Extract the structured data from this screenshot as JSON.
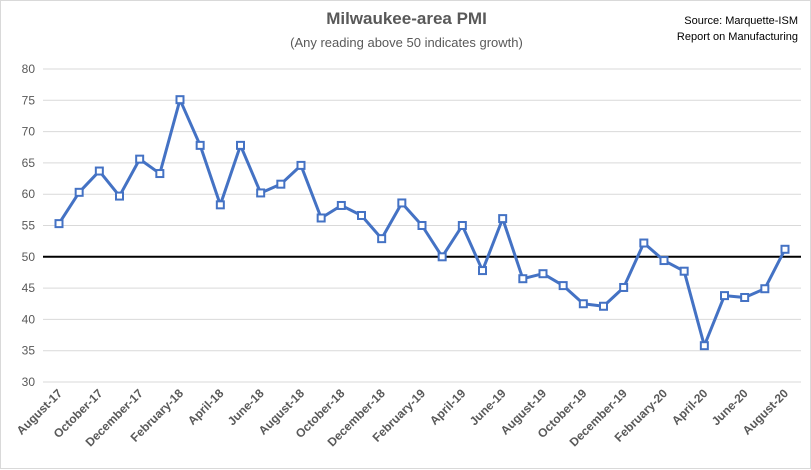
{
  "chart_data": {
    "type": "line",
    "title": "Milwaukee-area PMI",
    "subtitle": "(Any reading above 50 indicates growth)",
    "source_lines": [
      "Source: Marquette-ISM",
      "Report on Manufacturing"
    ],
    "xlabel": "",
    "ylabel": "",
    "ylim": [
      30,
      80
    ],
    "yticks": [
      30,
      35,
      40,
      45,
      50,
      55,
      60,
      65,
      70,
      75,
      80
    ],
    "grid": true,
    "reference_line": 50,
    "x": [
      "August-17",
      "September-17",
      "October-17",
      "November-17",
      "December-17",
      "January-18",
      "February-18",
      "March-18",
      "April-18",
      "May-18",
      "June-18",
      "July-18",
      "August-18",
      "September-18",
      "October-18",
      "November-18",
      "December-18",
      "January-19",
      "February-19",
      "March-19",
      "April-19",
      "May-19",
      "June-19",
      "July-19",
      "August-19",
      "September-19",
      "October-19",
      "November-19",
      "December-19",
      "January-20",
      "February-20",
      "March-20",
      "April-20",
      "May-20",
      "June-20",
      "July-20",
      "August-20"
    ],
    "x_tick_labels": [
      "August-17",
      "October-17",
      "December-17",
      "February-18",
      "April-18",
      "June-18",
      "August-18",
      "October-18",
      "December-18",
      "February-19",
      "April-19",
      "June-19",
      "August-19",
      "October-19",
      "December-19",
      "February-20",
      "April-20",
      "June-20",
      "August-20"
    ],
    "series": [
      {
        "values": [
          55.3,
          60.3,
          63.7,
          59.7,
          65.6,
          63.3,
          75.1,
          67.8,
          58.3,
          67.8,
          60.2,
          61.6,
          64.6,
          56.2,
          58.2,
          56.6,
          52.9,
          58.6,
          55.0,
          50.0,
          55.0,
          47.8,
          56.1,
          46.5,
          47.3,
          45.4,
          42.5,
          42.1,
          45.1,
          52.2,
          49.4,
          47.7,
          35.8,
          43.8,
          43.5,
          44.9,
          51.2
        ]
      }
    ]
  },
  "colors": {
    "series_line": "#4472c4",
    "marker_fill": "#ffffff",
    "gridline": "#d9d9d9",
    "reference_line": "#000000",
    "text": "#595959"
  }
}
